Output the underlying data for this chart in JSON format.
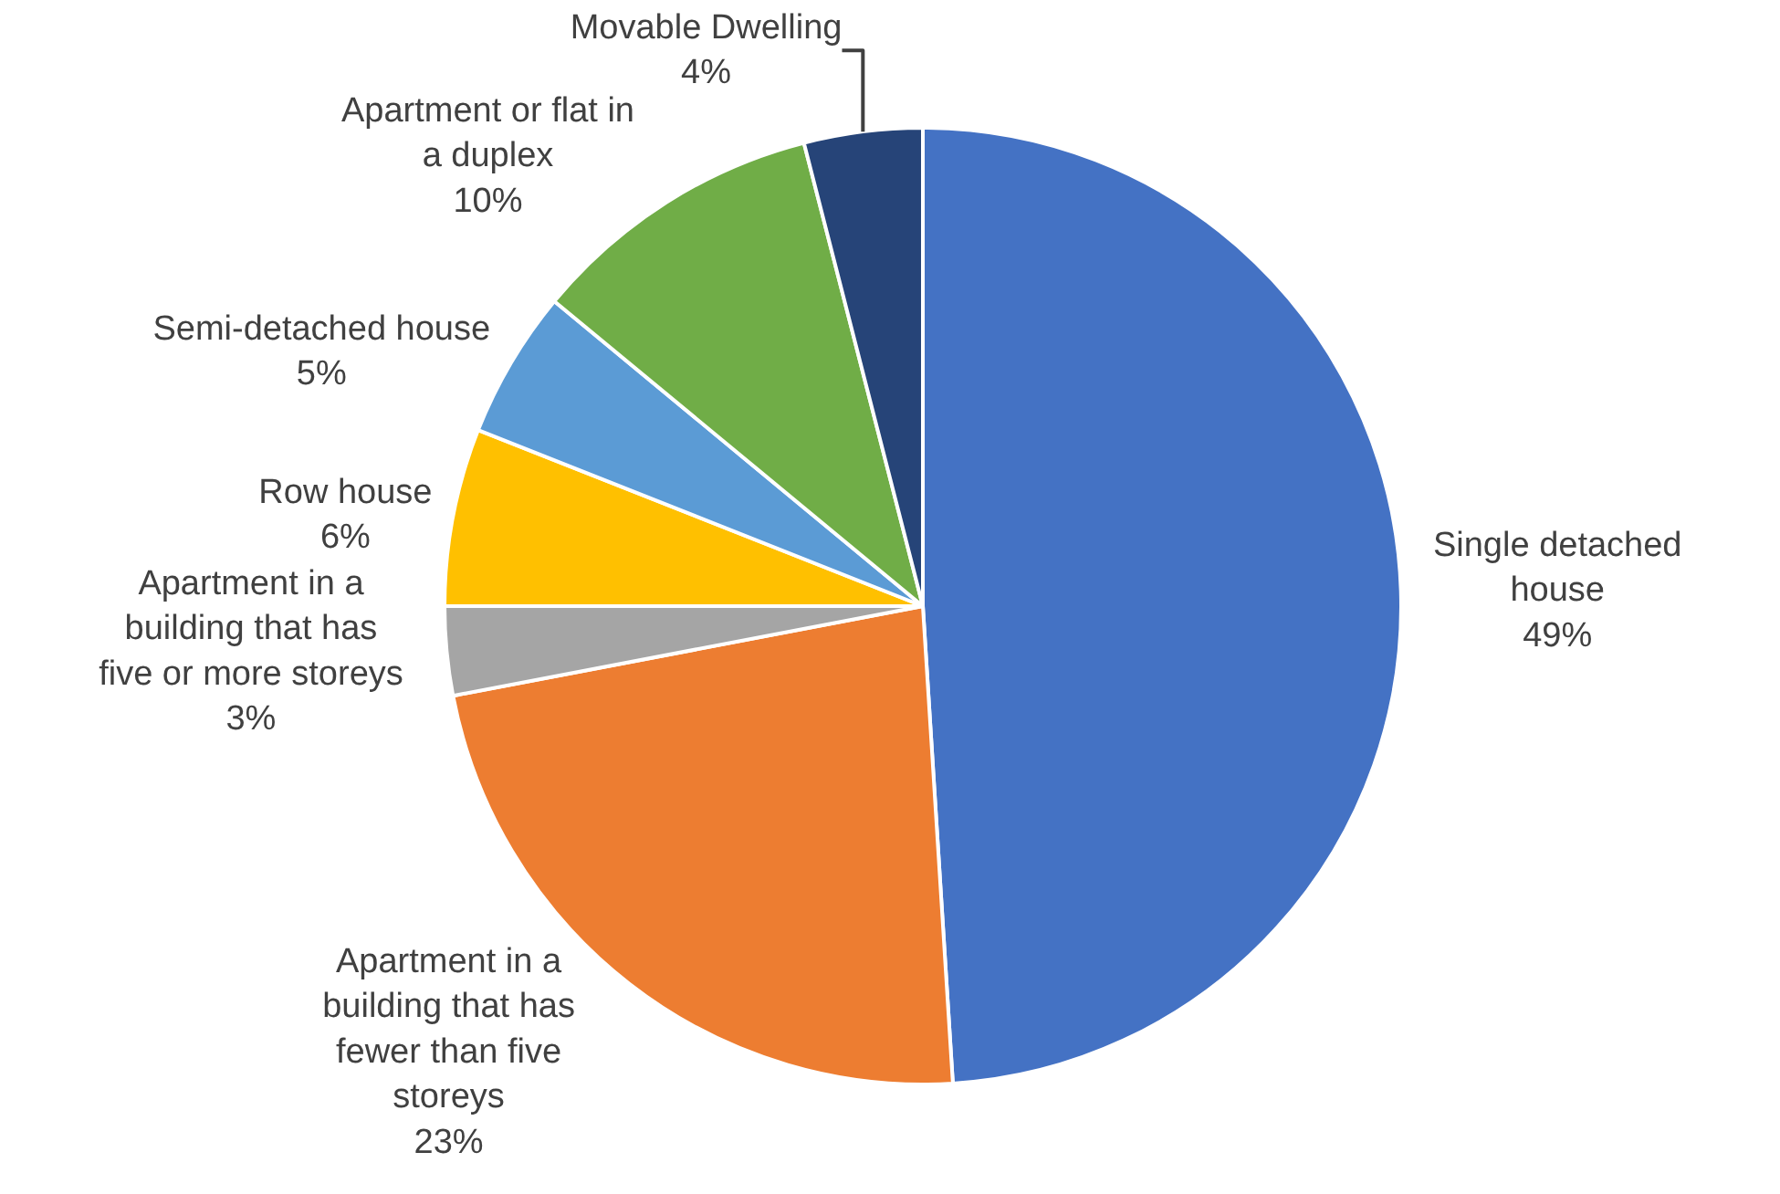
{
  "chart_data": {
    "type": "pie",
    "categories": [
      "Single detached house",
      "Apartment in a building that has fewer than five storeys",
      "Apartment in a building that has five or more storeys",
      "Row house",
      "Semi-detached house",
      "Apartment or flat in a duplex",
      "Movable Dwelling"
    ],
    "values": [
      49,
      23,
      3,
      6,
      5,
      10,
      4
    ],
    "value_labels": [
      "49%",
      "23%",
      "3%",
      "6%",
      "5%",
      "10%",
      "4%"
    ],
    "colors": [
      "#4472c4",
      "#ed7d31",
      "#a5a5a5",
      "#ffc000",
      "#5b9bd5",
      "#70ad47",
      "#264478"
    ],
    "legend": false
  }
}
